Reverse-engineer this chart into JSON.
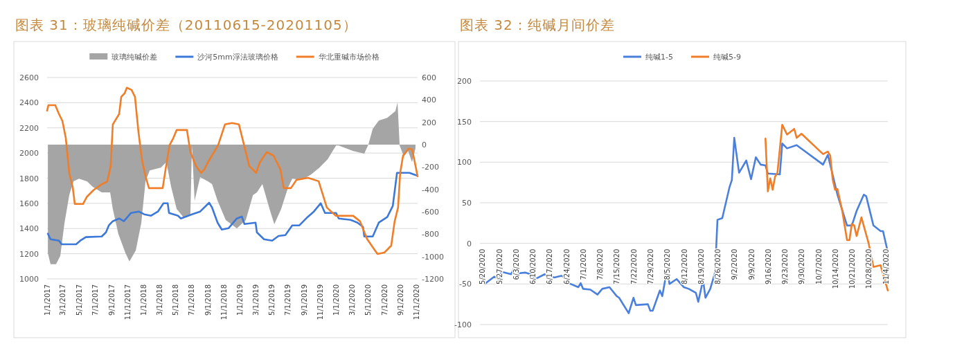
{
  "chart_data": [
    {
      "type": "line",
      "title": "图表 31：玻璃纯碱价差（20110615-20201105）",
      "legend": "top",
      "grid": "y",
      "xlim": [
        "2017-01-01",
        "2020-11-05"
      ],
      "xticks": [
        {
          "value": "2017-01-01",
          "label": "1/1/2017"
        },
        {
          "value": "2017-03-01",
          "label": "3/1/2017"
        },
        {
          "value": "2017-05-01",
          "label": "5/1/2017"
        },
        {
          "value": "2017-07-01",
          "label": "7/1/2017"
        },
        {
          "value": "2017-09-01",
          "label": "9/1/2017"
        },
        {
          "value": "2017-11-01",
          "label": "11/1/2017"
        },
        {
          "value": "2018-01-01",
          "label": "1/1/2018"
        },
        {
          "value": "2018-03-01",
          "label": "3/1/2018"
        },
        {
          "value": "2018-05-01",
          "label": "5/1/2018"
        },
        {
          "value": "2018-07-01",
          "label": "7/1/2018"
        },
        {
          "value": "2018-09-01",
          "label": "9/1/2018"
        },
        {
          "value": "2018-11-01",
          "label": "11/1/2018"
        },
        {
          "value": "2019-01-01",
          "label": "1/1/2019"
        },
        {
          "value": "2019-03-01",
          "label": "3/1/2019"
        },
        {
          "value": "2019-05-01",
          "label": "5/1/2019"
        },
        {
          "value": "2019-07-01",
          "label": "7/1/2019"
        },
        {
          "value": "2019-09-01",
          "label": "9/1/2019"
        },
        {
          "value": "2019-11-01",
          "label": "11/1/2019"
        },
        {
          "value": "2020-01-01",
          "label": "1/1/2020"
        },
        {
          "value": "2020-03-01",
          "label": "3/1/2020"
        },
        {
          "value": "2020-05-01",
          "label": "5/1/2020"
        },
        {
          "value": "2020-07-01",
          "label": "7/1/2020"
        },
        {
          "value": "2020-09-01",
          "label": "9/1/2020"
        },
        {
          "value": "2020-11-01",
          "label": "11/1/2020"
        }
      ],
      "ylim": [
        1000,
        2600
      ],
      "yticks": [
        1000,
        1200,
        1400,
        1600,
        1800,
        2000,
        2200,
        2400,
        2600
      ],
      "y2lim": [
        -1200,
        600
      ],
      "y2ticks": [
        -1200,
        -1000,
        -800,
        -600,
        -400,
        -200,
        0,
        200,
        400,
        600
      ],
      "series": [
        {
          "name": "玻璃纯碱价差",
          "type": "area",
          "axis": "y2",
          "color": "#a5a5a5",
          "x": [
            "2017-01-04",
            "2017-01-14",
            "2017-02-04",
            "2017-02-20",
            "2017-03-08",
            "2017-03-26",
            "2017-04-11",
            "2017-05-02",
            "2017-06-02",
            "2017-06-23",
            "2017-07-27",
            "2017-08-28",
            "2017-09-07",
            "2017-09-28",
            "2017-10-25",
            "2017-11-09",
            "2017-12-03",
            "2017-12-24",
            "2018-01-09",
            "2018-01-25",
            "2018-03-08",
            "2018-03-29",
            "2018-04-16",
            "2018-05-07",
            "2018-06-02",
            "2018-06-28",
            "2018-07-04",
            "2018-07-14",
            "2018-08-04",
            "2018-09-02",
            "2018-09-18",
            "2018-10-09",
            "2018-11-09",
            "2018-12-21",
            "2019-01-24",
            "2019-02-20",
            "2019-03-07",
            "2019-03-28",
            "2019-04-24",
            "2019-05-12",
            "2019-06-07",
            "2019-07-04",
            "2019-07-19",
            "2019-08-25",
            "2019-09-28",
            "2019-10-30",
            "2019-11-30",
            "2020-01-01",
            "2020-01-11",
            "2020-03-06",
            "2020-04-17",
            "2020-05-03",
            "2020-05-19",
            "2020-06-11",
            "2020-07-13",
            "2020-08-13",
            "2020-08-21",
            "2020-08-29",
            "2020-09-14",
            "2020-09-30",
            "2020-10-15",
            "2020-10-28"
          ],
          "values": [
            -970,
            -1069,
            -1069,
            -995,
            -699,
            -452,
            -328,
            -304,
            -330,
            -378,
            -427,
            -427,
            -575,
            -798,
            -970,
            -1044,
            -946,
            -699,
            -328,
            -230,
            -205,
            -156,
            -378,
            -575,
            -649,
            -620,
            -7,
            -501,
            -291,
            -328,
            -353,
            -501,
            -674,
            -748,
            -674,
            -452,
            -427,
            -353,
            -575,
            -711,
            -575,
            -378,
            -304,
            -316,
            -267,
            -205,
            -131,
            -7,
            -7,
            -57,
            -81,
            5,
            141,
            215,
            240,
            300,
            377,
            -7,
            -106,
            -57,
            -156,
            -32
          ]
        },
        {
          "name": "沙河5mm浮法玻璃价格",
          "type": "line",
          "axis": "y",
          "color": "#3b78d8",
          "x": [
            "2017-01-04",
            "2017-01-14",
            "2017-02-15",
            "2017-02-25",
            "2017-04-21",
            "2017-05-07",
            "2017-05-28",
            "2017-07-27",
            "2017-08-12",
            "2017-08-23",
            "2017-09-07",
            "2017-10-01",
            "2017-10-19",
            "2017-11-15",
            "2017-12-14",
            "2018-01-04",
            "2018-01-30",
            "2018-02-25",
            "2018-03-18",
            "2018-04-03",
            "2018-04-08",
            "2018-05-12",
            "2018-05-23",
            "2018-07-04",
            "2018-08-04",
            "2018-09-07",
            "2018-09-18",
            "2018-10-09",
            "2018-10-25",
            "2018-11-20",
            "2018-12-21",
            "2019-01-09",
            "2019-01-19",
            "2019-03-02",
            "2019-03-07",
            "2019-04-03",
            "2019-05-04",
            "2019-05-28",
            "2019-06-23",
            "2019-07-19",
            "2019-08-15",
            "2019-09-15",
            "2019-10-09",
            "2019-11-04",
            "2019-11-20",
            "2020-01-01",
            "2020-01-11",
            "2020-02-25",
            "2020-03-22",
            "2020-04-12",
            "2020-04-17",
            "2020-05-19",
            "2020-06-11",
            "2020-07-13",
            "2020-08-03",
            "2020-08-19",
            "2020-10-05",
            "2020-11-03"
          ],
          "values": [
            1359,
            1315,
            1304,
            1275,
            1275,
            1304,
            1332,
            1337,
            1370,
            1425,
            1458,
            1480,
            1458,
            1524,
            1535,
            1513,
            1502,
            1535,
            1601,
            1601,
            1524,
            1502,
            1480,
            1513,
            1535,
            1605,
            1568,
            1447,
            1392,
            1403,
            1480,
            1495,
            1436,
            1447,
            1370,
            1315,
            1304,
            1341,
            1348,
            1425,
            1425,
            1491,
            1535,
            1601,
            1524,
            1524,
            1480,
            1469,
            1447,
            1414,
            1337,
            1337,
            1447,
            1491,
            1579,
            1843,
            1843,
            1821
          ]
        },
        {
          "name": "华北重碱市场价格",
          "type": "line",
          "axis": "y",
          "color": "#f07d28",
          "x": [
            "2017-01-01",
            "2017-01-06",
            "2017-02-01",
            "2017-02-15",
            "2017-02-28",
            "2017-03-13",
            "2017-03-26",
            "2017-04-08",
            "2017-04-16",
            "2017-05-17",
            "2017-05-31",
            "2017-06-26",
            "2017-07-22",
            "2017-08-17",
            "2017-08-30",
            "2017-09-07",
            "2017-10-01",
            "2017-10-09",
            "2017-10-22",
            "2017-10-30",
            "2017-11-17",
            "2017-11-30",
            "2017-12-13",
            "2017-12-26",
            "2018-01-09",
            "2018-01-22",
            "2018-03-15",
            "2018-03-28",
            "2018-04-10",
            "2018-04-24",
            "2018-05-07",
            "2018-06-15",
            "2018-06-28",
            "2018-07-19",
            "2018-08-07",
            "2018-08-20",
            "2018-09-02",
            "2018-10-11",
            "2018-11-06",
            "2018-12-03",
            "2018-12-29",
            "2019-01-11",
            "2019-02-06",
            "2019-03-04",
            "2019-03-18",
            "2019-04-13",
            "2019-05-09",
            "2019-06-04",
            "2019-06-17",
            "2019-07-14",
            "2019-08-04",
            "2019-09-17",
            "2019-10-27",
            "2019-11-27",
            "2019-12-31",
            "2020-03-06",
            "2020-04-01",
            "2020-04-27",
            "2020-05-24",
            "2020-06-06",
            "2020-07-02",
            "2020-07-28",
            "2020-08-10",
            "2020-08-23",
            "2020-08-31",
            "2020-09-11",
            "2020-10-02",
            "2020-10-15",
            "2020-10-23",
            "2020-11-05"
          ],
          "values": [
            2337,
            2380,
            2380,
            2310,
            2255,
            2117,
            1840,
            1730,
            1595,
            1595,
            1650,
            1705,
            1745,
            1775,
            1897,
            2227,
            2310,
            2447,
            2475,
            2519,
            2502,
            2447,
            2172,
            1952,
            1815,
            1721,
            1721,
            1897,
            2062,
            2117,
            2183,
            2183,
            2007,
            1897,
            1842,
            1870,
            1925,
            2062,
            2227,
            2238,
            2227,
            2117,
            1897,
            1842,
            1925,
            2007,
            1980,
            1870,
            1721,
            1721,
            1787,
            1803,
            1776,
            1567,
            1501,
            1501,
            1457,
            1319,
            1237,
            1198,
            1209,
            1264,
            1457,
            1567,
            1842,
            1980,
            2035,
            2030,
            1952,
            1815
          ]
        }
      ]
    },
    {
      "type": "line",
      "title": "图表 32：纯碱月间价差",
      "legend": "top",
      "grid": "y",
      "xlim": [
        "2020-05-19",
        "2020-11-05"
      ],
      "xticks": [
        {
          "value": "2020-05-20",
          "label": "5/20/2020"
        },
        {
          "value": "2020-05-27",
          "label": "5/27/2020"
        },
        {
          "value": "2020-06-03",
          "label": "6/3/2020"
        },
        {
          "value": "2020-06-10",
          "label": "6/10/2020"
        },
        {
          "value": "2020-06-17",
          "label": "6/17/2020"
        },
        {
          "value": "2020-06-24",
          "label": "6/24/2020"
        },
        {
          "value": "2020-07-01",
          "label": "7/1/2020"
        },
        {
          "value": "2020-07-08",
          "label": "7/8/2020"
        },
        {
          "value": "2020-07-15",
          "label": "7/15/2020"
        },
        {
          "value": "2020-07-22",
          "label": "7/22/2020"
        },
        {
          "value": "2020-07-29",
          "label": "7/29/2020"
        },
        {
          "value": "2020-08-05",
          "label": "8/5/2020"
        },
        {
          "value": "2020-08-12",
          "label": "8/12/2020"
        },
        {
          "value": "2020-08-19",
          "label": "8/19/2020"
        },
        {
          "value": "2020-08-26",
          "label": "8/26/2020"
        },
        {
          "value": "2020-09-02",
          "label": "9/2/2020"
        },
        {
          "value": "2020-09-09",
          "label": "9/9/2020"
        },
        {
          "value": "2020-09-16",
          "label": "9/16/2020"
        },
        {
          "value": "2020-09-23",
          "label": "9/23/2020"
        },
        {
          "value": "2020-09-30",
          "label": "9/30/2020"
        },
        {
          "value": "2020-10-07",
          "label": "10/7/2020"
        },
        {
          "value": "2020-10-14",
          "label": "10/14/2020"
        },
        {
          "value": "2020-10-21",
          "label": "10/21/2020"
        },
        {
          "value": "2020-10-28",
          "label": "10/28/2020"
        },
        {
          "value": "2020-11-04",
          "label": "11/4/2020"
        }
      ],
      "ylim": [
        -100,
        200
      ],
      "yticks": [
        -100,
        -50,
        0,
        50,
        100,
        150,
        200
      ],
      "series": [
        {
          "name": "纯碱1-5",
          "type": "line",
          "axis": "y",
          "color": "#4a7fdb",
          "x": [
            "2020-05-20",
            "2020-05-21",
            "2020-05-25",
            "2020-05-27",
            "2020-05-28",
            "2020-06-01",
            "2020-06-02",
            "2020-06-04",
            "2020-06-07",
            "2020-06-10",
            "2020-06-11",
            "2020-06-15",
            "2020-06-16",
            "2020-06-17",
            "2020-06-19",
            "2020-06-22",
            "2020-06-24",
            "2020-06-25",
            "2020-06-29",
            "2020-06-30",
            "2020-07-01",
            "2020-07-04",
            "2020-07-07",
            "2020-07-09",
            "2020-07-12",
            "2020-07-15",
            "2020-07-16",
            "2020-07-20",
            "2020-07-22",
            "2020-07-23",
            "2020-07-28",
            "2020-07-29",
            "2020-07-30",
            "2020-08-02",
            "2020-08-03",
            "2020-08-05",
            "2020-08-06",
            "2020-08-09",
            "2020-08-12",
            "2020-08-14",
            "2020-08-17",
            "2020-08-18",
            "2020-08-20",
            "2020-08-21",
            "2020-08-23",
            "2020-08-25",
            "2020-08-26",
            "2020-08-28",
            "2020-08-31",
            "2020-09-01",
            "2020-09-02",
            "2020-09-04",
            "2020-09-07",
            "2020-09-09",
            "2020-09-11",
            "2020-09-13",
            "2020-09-15",
            "2020-09-16",
            "2020-09-21",
            "2020-09-22",
            "2020-09-24",
            "2020-09-28",
            "2020-10-09",
            "2020-10-11",
            "2020-10-15",
            "2020-10-19",
            "2020-10-21",
            "2020-10-23",
            "2020-10-26",
            "2020-10-27",
            "2020-10-30",
            "2020-11-02",
            "2020-11-03",
            "2020-11-05"
          ],
          "values": [
            -40,
            -50,
            -41,
            -45,
            -35,
            -38,
            -32,
            -37,
            -36,
            -39,
            -44,
            -38,
            -41,
            -40,
            -42,
            -40,
            -43,
            -49,
            -54,
            -49,
            -56,
            -57,
            -63,
            -56,
            -54,
            -65,
            -67,
            -86,
            -67,
            -76,
            -75,
            -83,
            -83,
            -58,
            -65,
            -32,
            -50,
            -44,
            -54,
            -56,
            -61,
            -72,
            -45,
            -67,
            -56,
            -36,
            29,
            31,
            69,
            78,
            130,
            87,
            102,
            79,
            106,
            97,
            96,
            86,
            85,
            123,
            117,
            121,
            97,
            109,
            60,
            22,
            22,
            40,
            60,
            58,
            22,
            15,
            15,
            -11
          ]
        },
        {
          "name": "纯碱5-9",
          "type": "line",
          "axis": "y",
          "color": "#f07d28",
          "x": [
            "2020-09-15",
            "2020-09-16",
            "2020-09-17",
            "2020-09-18",
            "2020-09-19",
            "2020-09-20",
            "2020-09-22",
            "2020-09-24",
            "2020-09-27",
            "2020-09-28",
            "2020-09-30",
            "2020-10-09",
            "2020-10-11",
            "2020-10-12",
            "2020-10-13",
            "2020-10-14",
            "2020-10-15",
            "2020-10-17",
            "2020-10-19",
            "2020-10-20",
            "2020-10-21",
            "2020-10-22",
            "2020-10-23",
            "2020-10-25",
            "2020-10-28",
            "2020-10-30",
            "2020-11-02",
            "2020-11-03",
            "2020-11-05"
          ],
          "values": [
            129,
            64,
            80,
            66,
            82,
            87,
            146,
            134,
            141,
            130,
            135,
            110,
            113,
            108,
            79,
            66,
            67,
            40,
            4,
            4,
            24,
            22,
            9,
            32,
            0,
            -29,
            -27,
            -38,
            -58
          ]
        }
      ]
    }
  ]
}
